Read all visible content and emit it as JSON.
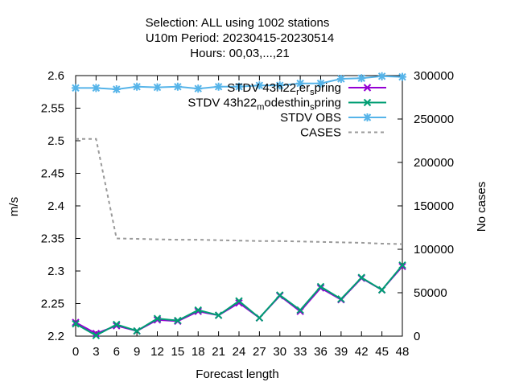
{
  "chart_data": {
    "type": "line",
    "title_lines": [
      "Selection: ALL using  1002 stations",
      "U10m   Period: 20230415-20230514",
      "Hours:  00,03,...,21"
    ],
    "xlabel": "Forecast length",
    "ylabel": "m/s",
    "y2label": "No cases",
    "xlim": [
      0,
      48
    ],
    "ylim": [
      2.2,
      2.6
    ],
    "y2lim": [
      0,
      300000
    ],
    "x_ticks": [
      0,
      3,
      6,
      9,
      12,
      15,
      18,
      21,
      24,
      27,
      30,
      33,
      36,
      39,
      42,
      45,
      48
    ],
    "y_ticks": [
      "2.2",
      "2.25",
      "2.3",
      "2.35",
      "2.4",
      "2.45",
      "2.5",
      "2.55",
      "2.6"
    ],
    "y2_ticks": [
      "0",
      "50000",
      "100000",
      "150000",
      "200000",
      "250000",
      "300000"
    ],
    "grid": false,
    "legend_position": "top-right",
    "x": [
      0,
      3,
      6,
      9,
      12,
      15,
      18,
      21,
      24,
      27,
      30,
      33,
      36,
      39,
      42,
      45,
      48
    ],
    "series": [
      {
        "name_parts": [
          {
            "text": "STDV 43h22",
            "sub": false
          },
          {
            "text": "r",
            "sub": true
          },
          {
            "text": "er",
            "sub": false
          },
          {
            "text": "s",
            "sub": true
          },
          {
            "text": "pring",
            "sub": false
          }
        ],
        "axis": "y1",
        "color": "#9400d3",
        "dash": "solid",
        "marker": "cross",
        "values": [
          2.221,
          2.204,
          2.216,
          2.208,
          2.225,
          2.223,
          2.238,
          2.232,
          2.251,
          2.228,
          2.262,
          2.238,
          2.274,
          2.256,
          2.289,
          2.271,
          2.307
        ]
      },
      {
        "name_parts": [
          {
            "text": "STDV 43h22",
            "sub": false
          },
          {
            "text": "m",
            "sub": true
          },
          {
            "text": "odesthin",
            "sub": false
          },
          {
            "text": "s",
            "sub": true
          },
          {
            "text": "pring",
            "sub": false
          }
        ],
        "axis": "y1",
        "color": "#009e73",
        "dash": "solid",
        "marker": "cross",
        "values": [
          2.219,
          2.201,
          2.218,
          2.208,
          2.227,
          2.224,
          2.24,
          2.232,
          2.254,
          2.228,
          2.263,
          2.24,
          2.276,
          2.257,
          2.29,
          2.271,
          2.309
        ]
      },
      {
        "name_parts": [
          {
            "text": "STDV OBS",
            "sub": false
          }
        ],
        "axis": "y1",
        "color": "#56b4e9",
        "dash": "solid",
        "marker": "star",
        "values": [
          2.581,
          2.581,
          2.579,
          2.583,
          2.582,
          2.583,
          2.58,
          2.583,
          2.583,
          2.585,
          2.585,
          2.588,
          2.588,
          2.595,
          2.596,
          2.599,
          2.598
        ]
      },
      {
        "name_parts": [
          {
            "text": "CASES",
            "sub": false
          }
        ],
        "axis": "y2",
        "color": "#999999",
        "dash": "dashed",
        "marker": "none",
        "values": [
          227000,
          227000,
          112500,
          112000,
          111500,
          111000,
          111000,
          110500,
          110000,
          109500,
          109500,
          109000,
          108500,
          108000,
          107500,
          106500,
          106000
        ]
      }
    ]
  }
}
